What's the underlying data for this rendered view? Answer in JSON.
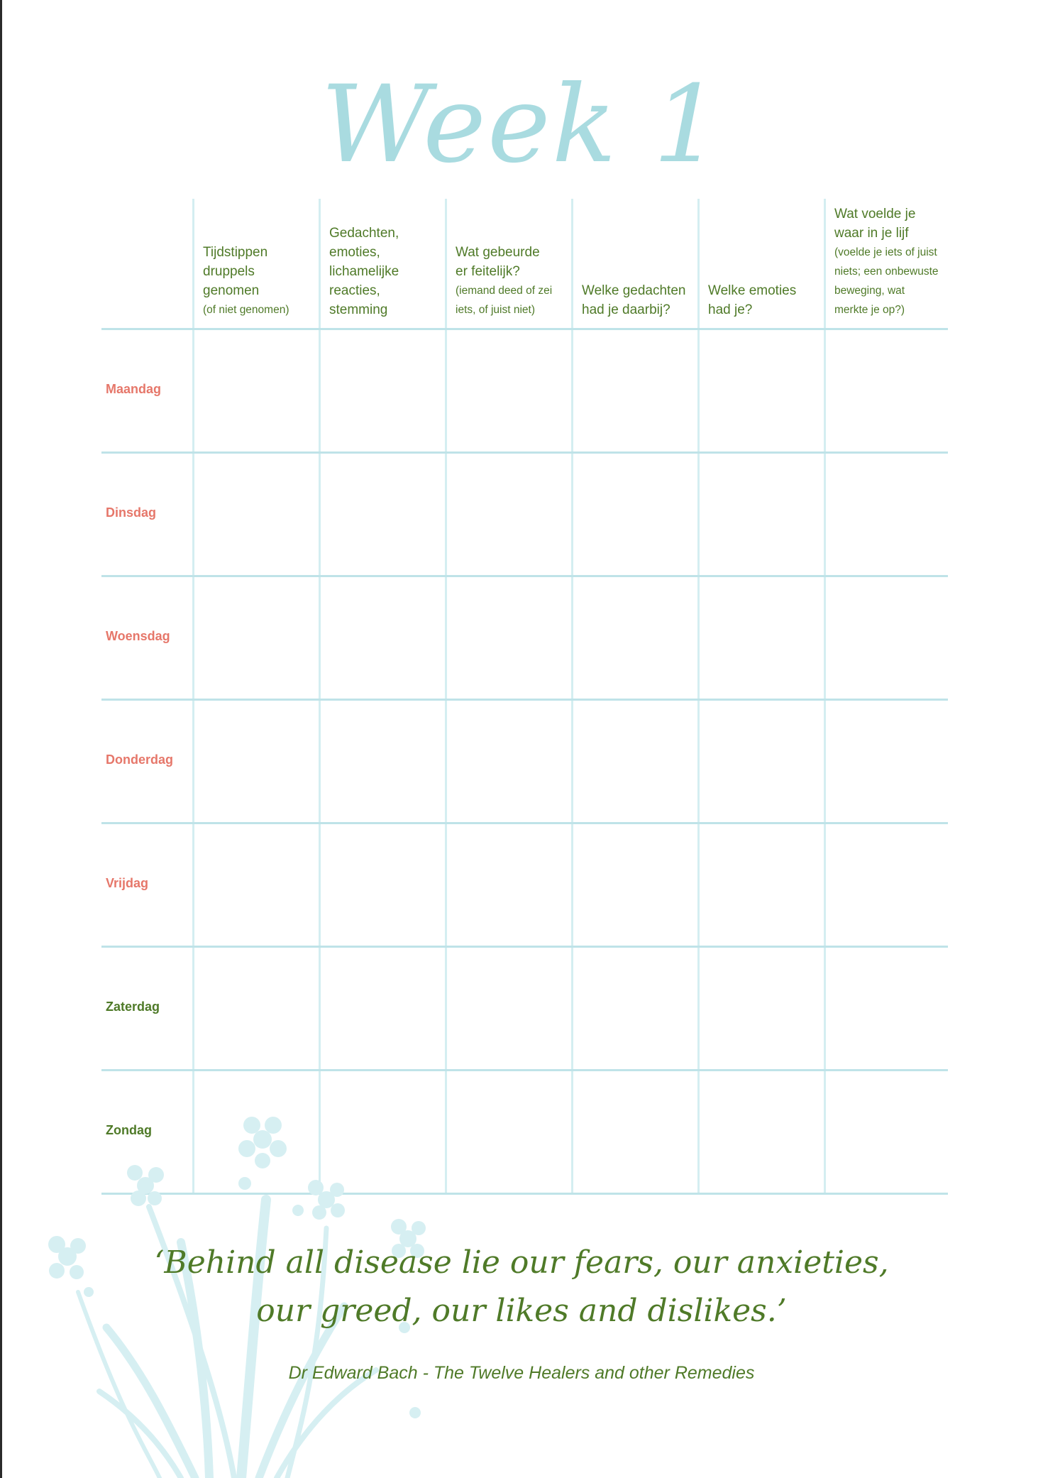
{
  "title": "Week 1",
  "columns": [
    {
      "main": "Tijdstippen\ndruppels\ngenomen",
      "sub": "(of niet genomen)"
    },
    {
      "main": "Gedachten,\nemoties,\nlichamelijke\nreacties,\nstemming",
      "sub": ""
    },
    {
      "main": "Wat gebeurde\ner feitelijk?",
      "sub": "(iemand deed of zei\niets, of juist niet)"
    },
    {
      "main": "Welke gedachten\nhad je daarbij?",
      "sub": ""
    },
    {
      "main": "Welke emoties\nhad je?",
      "sub": ""
    },
    {
      "main": "Wat voelde je\nwaar in je lijf",
      "sub": "(voelde je iets of juist\nniets; een onbewuste\nbeweging, wat\nmerkte je op?)"
    }
  ],
  "days": [
    "Maandag",
    "Dinsdag",
    "Woensdag",
    "Donderdag",
    "Vrijdag",
    "Zaterdag",
    "Zondag"
  ],
  "quote": "‘Behind all disease lie our fears, our anxieties,\nour greed, our likes and dislikes.’",
  "attribution": "Dr Edward Bach  - The Twelve Healers and other Remedies",
  "colors": {
    "accent_teal": "#a9dbe0",
    "grid_line": "#d4eef1",
    "text_green": "#4f7a28",
    "weekday_rose": "#e6776a"
  }
}
